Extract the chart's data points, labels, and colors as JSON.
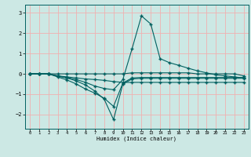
{
  "xlabel": "Humidex (Indice chaleur)",
  "xlim": [
    -0.5,
    23.5
  ],
  "ylim": [
    -2.7,
    3.4
  ],
  "yticks": [
    -2,
    -1,
    0,
    1,
    2,
    3
  ],
  "xticks": [
    0,
    1,
    2,
    3,
    4,
    5,
    6,
    7,
    8,
    9,
    10,
    11,
    12,
    13,
    14,
    15,
    16,
    17,
    18,
    19,
    20,
    21,
    22,
    23
  ],
  "bg_color": "#cce8e4",
  "grid_color": "#f0b0b0",
  "line_color": "#006060",
  "line1_x": [
    0,
    1,
    2,
    3,
    4,
    5,
    6,
    7,
    8,
    9,
    10,
    11,
    12,
    13,
    14,
    15,
    16,
    17,
    18,
    19,
    20,
    21,
    22,
    23
  ],
  "line1_y": [
    0.0,
    0.0,
    0.0,
    0.0,
    0.0,
    0.0,
    0.0,
    0.0,
    0.0,
    0.0,
    0.0,
    0.05,
    0.05,
    0.05,
    0.05,
    0.05,
    0.05,
    0.05,
    0.0,
    0.0,
    0.0,
    0.0,
    0.0,
    -0.1
  ],
  "line2_x": [
    0,
    1,
    2,
    3,
    4,
    5,
    6,
    7,
    8,
    9,
    10,
    11,
    12,
    13,
    14,
    15,
    16,
    17,
    18,
    19,
    20,
    21,
    22,
    23
  ],
  "line2_y": [
    0.0,
    0.0,
    0.0,
    -0.1,
    -0.15,
    -0.2,
    -0.25,
    -0.28,
    -0.32,
    -0.38,
    -0.42,
    -0.42,
    -0.42,
    -0.42,
    -0.42,
    -0.42,
    -0.42,
    -0.42,
    -0.42,
    -0.42,
    -0.42,
    -0.42,
    -0.42,
    -0.42
  ],
  "line3_x": [
    0,
    1,
    2,
    3,
    4,
    5,
    6,
    7,
    8,
    9,
    10,
    11,
    12,
    13,
    14,
    15,
    16,
    17,
    18,
    19,
    20,
    21,
    22,
    23
  ],
  "line3_y": [
    0.0,
    0.0,
    0.0,
    -0.15,
    -0.3,
    -0.5,
    -0.75,
    -0.95,
    -1.2,
    -1.6,
    -0.45,
    -0.2,
    -0.18,
    -0.18,
    -0.18,
    -0.18,
    -0.18,
    -0.18,
    -0.18,
    -0.18,
    -0.18,
    -0.18,
    -0.18,
    -0.18
  ],
  "line4_x": [
    0,
    1,
    2,
    3,
    4,
    5,
    6,
    7,
    8,
    9,
    10,
    11,
    12,
    13,
    14,
    15,
    16,
    17,
    18,
    19,
    20,
    21,
    22,
    23
  ],
  "line4_y": [
    0.0,
    0.0,
    0.0,
    -0.12,
    -0.2,
    -0.35,
    -0.55,
    -0.85,
    -1.25,
    -2.25,
    -0.5,
    -0.25,
    -0.22,
    -0.22,
    -0.22,
    -0.22,
    -0.22,
    -0.22,
    -0.22,
    -0.22,
    -0.22,
    -0.22,
    -0.22,
    -0.22
  ],
  "line5_x": [
    0,
    1,
    2,
    3,
    4,
    5,
    6,
    7,
    8,
    9,
    10,
    11,
    12,
    13,
    14,
    15,
    16,
    17,
    18,
    19,
    20,
    21,
    22,
    23
  ],
  "line5_y": [
    0.0,
    0.0,
    0.0,
    -0.1,
    -0.18,
    -0.28,
    -0.42,
    -0.6,
    -0.72,
    -0.78,
    -0.28,
    1.25,
    2.85,
    2.45,
    0.75,
    0.55,
    0.42,
    0.28,
    0.15,
    0.05,
    -0.05,
    -0.1,
    -0.15,
    -0.2
  ]
}
